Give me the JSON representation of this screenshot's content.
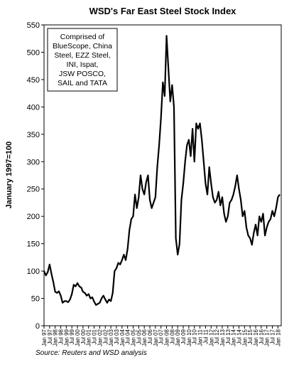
{
  "chart_data": {
    "type": "line",
    "title": "WSD's Far East Steel Stock Index",
    "y_label": "January 1997=100",
    "source": "Source: Reuters and WSD analysis",
    "annotation": [
      "Comprised of",
      "BlueScope, China",
      "Steel, EZZ Steel,",
      "INI, Ispat,",
      "JSW POSCO,",
      "SAIL and TATA"
    ],
    "categories": [
      "Jan 97",
      null,
      null,
      "Jul 97",
      null,
      null,
      "Jan 98",
      null,
      null,
      "Jul 98",
      null,
      null,
      "Jan 99",
      null,
      null,
      "Jul 99",
      null,
      null,
      "Jan 00",
      null,
      null,
      "Jul 00",
      null,
      null,
      "Jan 01",
      null,
      null,
      "Jul 01",
      null,
      null,
      "Jan 02",
      null,
      null,
      "Jul 02",
      null,
      null,
      "Jan 03",
      null,
      null,
      "Jul 03",
      null,
      null,
      "Jan 04",
      null,
      null,
      "Jul 04",
      null,
      null,
      "Jan 05",
      null,
      null,
      "Jul 05",
      null,
      null,
      "Jan 06",
      null,
      null,
      "Jul 06",
      null,
      null,
      "Jan 07",
      null,
      null,
      "Jul 07",
      null,
      null,
      "Jan 08",
      null,
      null,
      "Jul 08",
      null,
      null,
      "Jan 09",
      null,
      null,
      "Jul 09",
      null,
      null,
      "Jan 10",
      null,
      null,
      "Jul 10",
      null,
      null,
      "Jan 11",
      null,
      null,
      "Jul 11",
      null,
      null,
      "Jan 12",
      null,
      null,
      "Jul 12",
      null,
      null,
      "Jan 13",
      null,
      null,
      "Jul 13",
      null,
      null,
      "Jan 14",
      null,
      null,
      "Jul 14",
      null,
      null,
      "Jan 15",
      null,
      null,
      "Jul 15",
      null,
      null,
      "Jan 16",
      null,
      null,
      "Jul 16",
      null,
      null,
      "Jan 17",
      null,
      null,
      "Jul 17",
      null,
      null,
      "Jan 18",
      null
    ],
    "values": [
      100,
      92,
      98,
      112,
      95,
      80,
      62,
      60,
      63,
      55,
      42,
      45,
      45,
      43,
      48,
      58,
      75,
      72,
      78,
      72,
      70,
      62,
      60,
      55,
      58,
      50,
      52,
      44,
      38,
      40,
      42,
      50,
      55,
      48,
      42,
      48,
      45,
      60,
      100,
      105,
      115,
      112,
      120,
      130,
      120,
      140,
      175,
      195,
      200,
      240,
      215,
      235,
      275,
      250,
      240,
      262,
      275,
      230,
      215,
      225,
      235,
      290,
      330,
      380,
      445,
      420,
      530,
      470,
      410,
      440,
      400,
      160,
      130,
      150,
      230,
      260,
      300,
      330,
      340,
      310,
      360,
      300,
      370,
      360,
      370,
      340,
      300,
      260,
      240,
      290,
      260,
      235,
      225,
      230,
      245,
      220,
      235,
      205,
      190,
      200,
      225,
      230,
      240,
      255,
      275,
      250,
      230,
      200,
      210,
      180,
      165,
      160,
      148,
      170,
      185,
      165,
      200,
      190,
      205,
      165,
      180,
      190,
      195,
      210,
      200,
      215,
      235,
      240
    ],
    "color": "#000000",
    "ylim": [
      0,
      550
    ],
    "yticks": [
      0,
      50,
      100,
      150,
      200,
      250,
      300,
      350,
      400,
      450,
      500,
      550
    ],
    "grid": false
  }
}
